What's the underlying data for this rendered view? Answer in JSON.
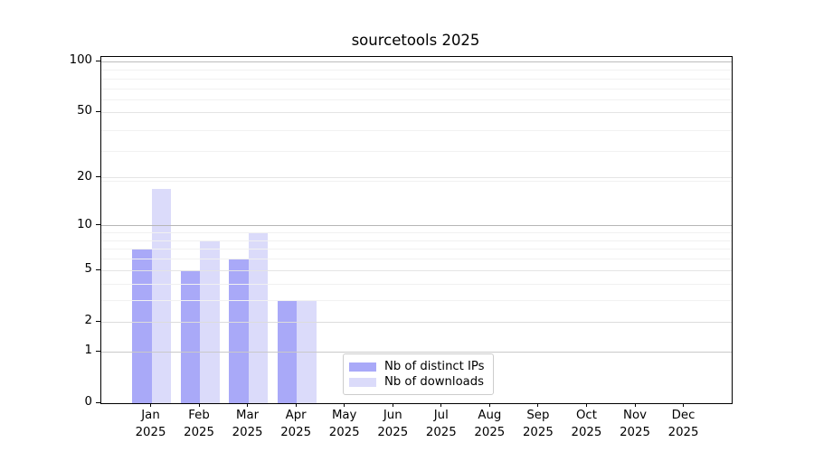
{
  "chart_data": {
    "type": "bar",
    "title": "sourcetools 2025",
    "x_year": "2025",
    "categories": [
      "Jan",
      "Feb",
      "Mar",
      "Apr",
      "May",
      "Jun",
      "Jul",
      "Aug",
      "Sep",
      "Oct",
      "Nov",
      "Dec"
    ],
    "series": [
      {
        "name": "Nb of distinct IPs",
        "color": "#a9a9f8",
        "values": [
          7,
          5,
          6,
          3,
          null,
          null,
          null,
          null,
          null,
          null,
          null,
          null
        ]
      },
      {
        "name": "Nb of downloads",
        "color": "#dbdbfa",
        "values": [
          17,
          8,
          9,
          3,
          null,
          null,
          null,
          null,
          null,
          null,
          null,
          null
        ]
      }
    ],
    "y_scale": "log10(1+x)",
    "ylim": [
      0,
      107
    ],
    "y_ticks": [
      {
        "value": 0,
        "label": "0",
        "grid": null
      },
      {
        "value": 1,
        "label": "1",
        "grid": "#c9c9c9"
      },
      {
        "value": 2,
        "label": "2",
        "grid": "#dcdcdc"
      },
      {
        "value": 5,
        "label": "5",
        "grid": "#e4e4e4"
      },
      {
        "value": 10,
        "label": "10",
        "grid": "#b6b6b6"
      },
      {
        "value": 20,
        "label": "20",
        "grid": "#e4e4e4"
      },
      {
        "value": 50,
        "label": "50",
        "grid": "#e4e4e4"
      },
      {
        "value": 100,
        "label": "100",
        "grid": "#bdbdbd"
      }
    ],
    "y_minor_gridlines": [
      3,
      4,
      6,
      7,
      8,
      9,
      19,
      29,
      39,
      59,
      69,
      79,
      89
    ],
    "minor_grid_color": "#f1f1f1",
    "grid": true,
    "legend": {
      "position": "lower-center-inside",
      "entries": [
        "Nb of distinct IPs",
        "Nb of downloads"
      ]
    },
    "colors": {
      "distinct_ips": "#a9a9f8",
      "downloads": "#dbdbfa",
      "spine": "#000000",
      "legend_border": "#cccccc"
    }
  }
}
